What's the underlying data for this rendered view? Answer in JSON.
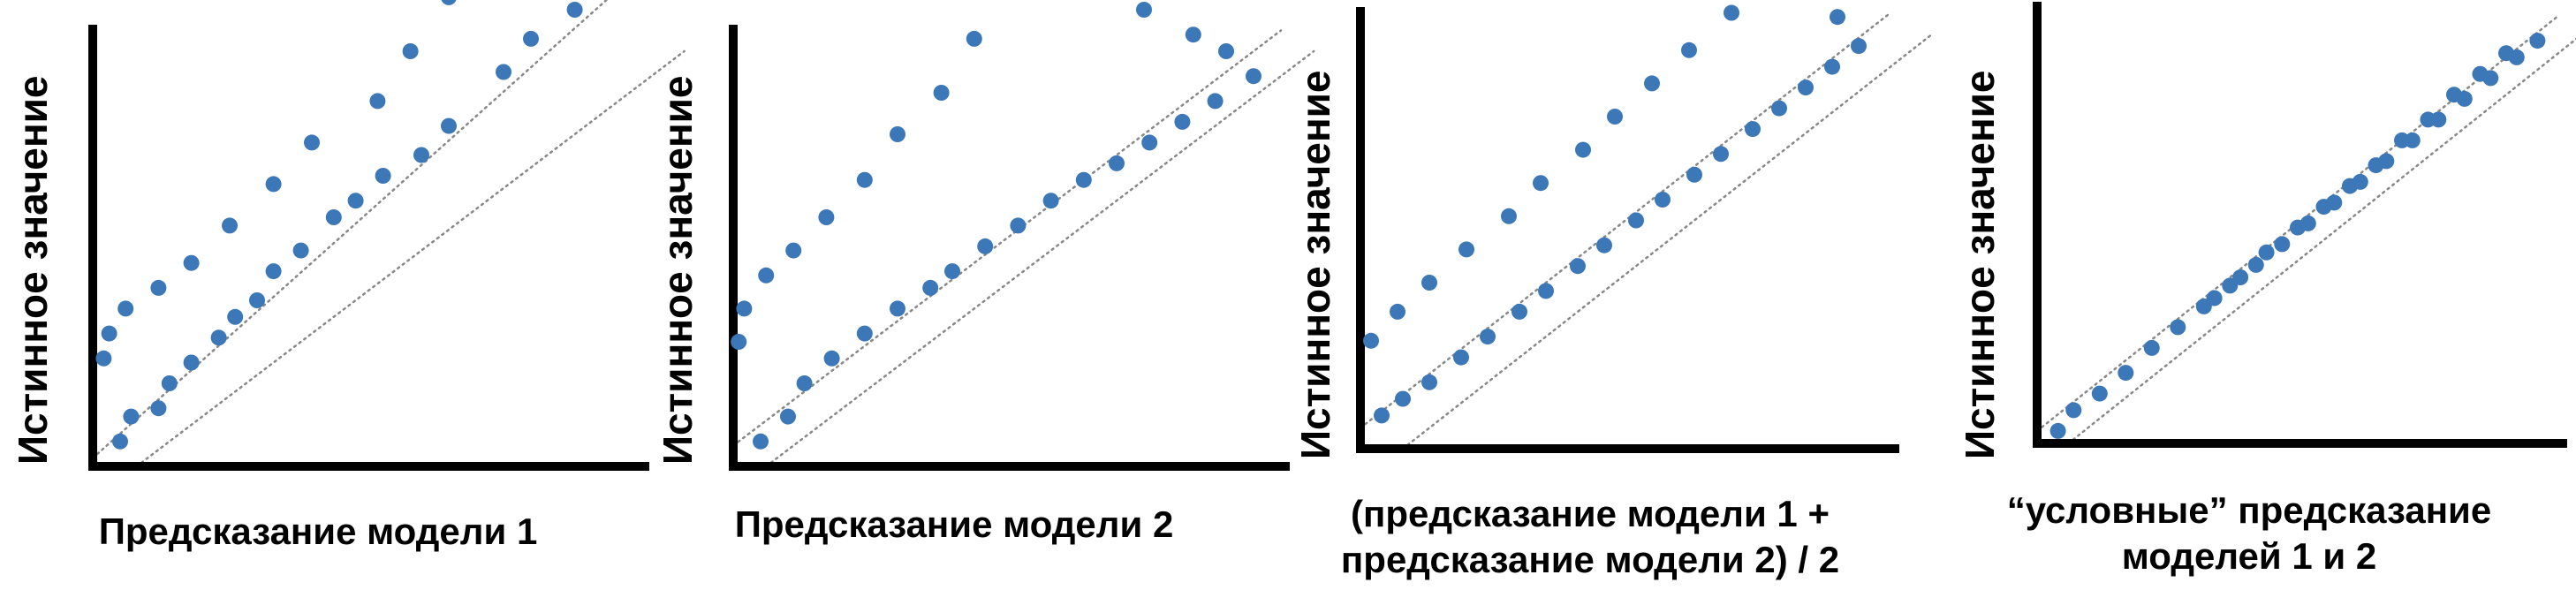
{
  "chart_data": [
    {
      "type": "scatter",
      "title": "",
      "xlabel": "Предсказание модели 1",
      "ylabel": "Истинное значение",
      "axis_ticks": false,
      "grid": false,
      "band_lines": {
        "style": "dotted",
        "color": "#888888"
      },
      "point_color": "#3c78b8",
      "points": [
        [
          0.05,
          0.06
        ],
        [
          0.07,
          0.12
        ],
        [
          0.12,
          0.14
        ],
        [
          0.14,
          0.2
        ],
        [
          0.18,
          0.25
        ],
        [
          0.23,
          0.31
        ],
        [
          0.26,
          0.36
        ],
        [
          0.3,
          0.4
        ],
        [
          0.33,
          0.47
        ],
        [
          0.38,
          0.52
        ],
        [
          0.44,
          0.6
        ],
        [
          0.48,
          0.64
        ],
        [
          0.53,
          0.7
        ],
        [
          0.6,
          0.75
        ],
        [
          0.65,
          0.82
        ],
        [
          0.75,
          0.95
        ],
        [
          0.8,
          1.03
        ],
        [
          0.88,
          1.1
        ],
        [
          0.92,
          1.16
        ],
        [
          0.85,
          1.3
        ],
        [
          0.75,
          1.25
        ],
        [
          0.65,
          1.13
        ],
        [
          0.58,
          1.0
        ],
        [
          0.52,
          0.88
        ],
        [
          0.4,
          0.78
        ],
        [
          0.33,
          0.68
        ],
        [
          0.25,
          0.58
        ],
        [
          0.18,
          0.49
        ],
        [
          0.12,
          0.43
        ],
        [
          0.06,
          0.38
        ],
        [
          0.03,
          0.32
        ],
        [
          0.02,
          0.26
        ]
      ]
    },
    {
      "type": "scatter",
      "title": "",
      "xlabel": "Предсказание модели 2",
      "ylabel": "Истинное значение",
      "axis_ticks": false,
      "grid": false,
      "band_lines": {
        "style": "dotted",
        "color": "#888888"
      },
      "point_color": "#3c78b8",
      "points": [
        [
          0.05,
          0.06
        ],
        [
          0.1,
          0.12
        ],
        [
          0.13,
          0.2
        ],
        [
          0.18,
          0.26
        ],
        [
          0.24,
          0.32
        ],
        [
          0.3,
          0.38
        ],
        [
          0.36,
          0.43
        ],
        [
          0.4,
          0.47
        ],
        [
          0.46,
          0.53
        ],
        [
          0.52,
          0.58
        ],
        [
          0.58,
          0.64
        ],
        [
          0.64,
          0.69
        ],
        [
          0.7,
          0.73
        ],
        [
          0.76,
          0.78
        ],
        [
          0.82,
          0.83
        ],
        [
          0.88,
          0.88
        ],
        [
          0.95,
          0.94
        ],
        [
          0.9,
          1.0
        ],
        [
          0.84,
          1.04
        ],
        [
          0.75,
          1.1
        ],
        [
          0.68,
          1.16
        ],
        [
          0.6,
          1.22
        ],
        [
          0.55,
          1.15
        ],
        [
          0.44,
          1.03
        ],
        [
          0.38,
          0.9
        ],
        [
          0.3,
          0.8
        ],
        [
          0.24,
          0.69
        ],
        [
          0.17,
          0.6
        ],
        [
          0.11,
          0.52
        ],
        [
          0.06,
          0.46
        ],
        [
          0.02,
          0.38
        ],
        [
          0.01,
          0.3
        ]
      ]
    },
    {
      "type": "scatter",
      "title": "",
      "xlabel": "(предсказание модели 1 +\nпредсказание модели 2) / 2",
      "ylabel": "Истинное значение",
      "axis_ticks": false,
      "grid": false,
      "band_lines": {
        "style": "dotted",
        "color": "#888888"
      },
      "point_color": "#3c78b8",
      "points": [
        [
          0.04,
          0.08
        ],
        [
          0.08,
          0.12
        ],
        [
          0.13,
          0.16
        ],
        [
          0.19,
          0.22
        ],
        [
          0.24,
          0.27
        ],
        [
          0.3,
          0.33
        ],
        [
          0.35,
          0.38
        ],
        [
          0.41,
          0.44
        ],
        [
          0.46,
          0.49
        ],
        [
          0.52,
          0.55
        ],
        [
          0.57,
          0.6
        ],
        [
          0.63,
          0.66
        ],
        [
          0.68,
          0.71
        ],
        [
          0.74,
          0.77
        ],
        [
          0.79,
          0.82
        ],
        [
          0.84,
          0.87
        ],
        [
          0.89,
          0.92
        ],
        [
          0.94,
          0.97
        ],
        [
          0.9,
          1.04
        ],
        [
          0.84,
          1.1
        ],
        [
          0.76,
          1.12
        ],
        [
          0.7,
          1.05
        ],
        [
          0.62,
          0.96
        ],
        [
          0.55,
          0.88
        ],
        [
          0.48,
          0.8
        ],
        [
          0.42,
          0.72
        ],
        [
          0.34,
          0.64
        ],
        [
          0.28,
          0.56
        ],
        [
          0.2,
          0.48
        ],
        [
          0.13,
          0.4
        ],
        [
          0.07,
          0.33
        ],
        [
          0.02,
          0.26
        ]
      ]
    },
    {
      "type": "scatter",
      "title": "",
      "xlabel": "“условные” предсказание\nмоделей 1 и 2",
      "ylabel": "Истинное значение",
      "axis_ticks": false,
      "grid": false,
      "band_lines": {
        "style": "dotted",
        "color": "#888888"
      },
      "point_color": "#3c78b8",
      "points": [
        [
          0.04,
          0.03
        ],
        [
          0.07,
          0.08
        ],
        [
          0.12,
          0.12
        ],
        [
          0.17,
          0.17
        ],
        [
          0.22,
          0.23
        ],
        [
          0.27,
          0.28
        ],
        [
          0.32,
          0.33
        ],
        [
          0.37,
          0.38
        ],
        [
          0.42,
          0.43
        ],
        [
          0.47,
          0.48
        ],
        [
          0.52,
          0.53
        ],
        [
          0.57,
          0.58
        ],
        [
          0.62,
          0.63
        ],
        [
          0.67,
          0.68
        ],
        [
          0.72,
          0.73
        ],
        [
          0.77,
          0.78
        ],
        [
          0.82,
          0.83
        ],
        [
          0.87,
          0.88
        ],
        [
          0.92,
          0.93
        ],
        [
          0.96,
          0.97
        ],
        [
          0.9,
          0.94
        ],
        [
          0.85,
          0.89
        ],
        [
          0.8,
          0.84
        ],
        [
          0.75,
          0.78
        ],
        [
          0.7,
          0.73
        ],
        [
          0.65,
          0.67
        ],
        [
          0.6,
          0.62
        ],
        [
          0.55,
          0.57
        ],
        [
          0.5,
          0.52
        ],
        [
          0.44,
          0.46
        ],
        [
          0.39,
          0.4
        ],
        [
          0.34,
          0.35
        ]
      ]
    }
  ]
}
